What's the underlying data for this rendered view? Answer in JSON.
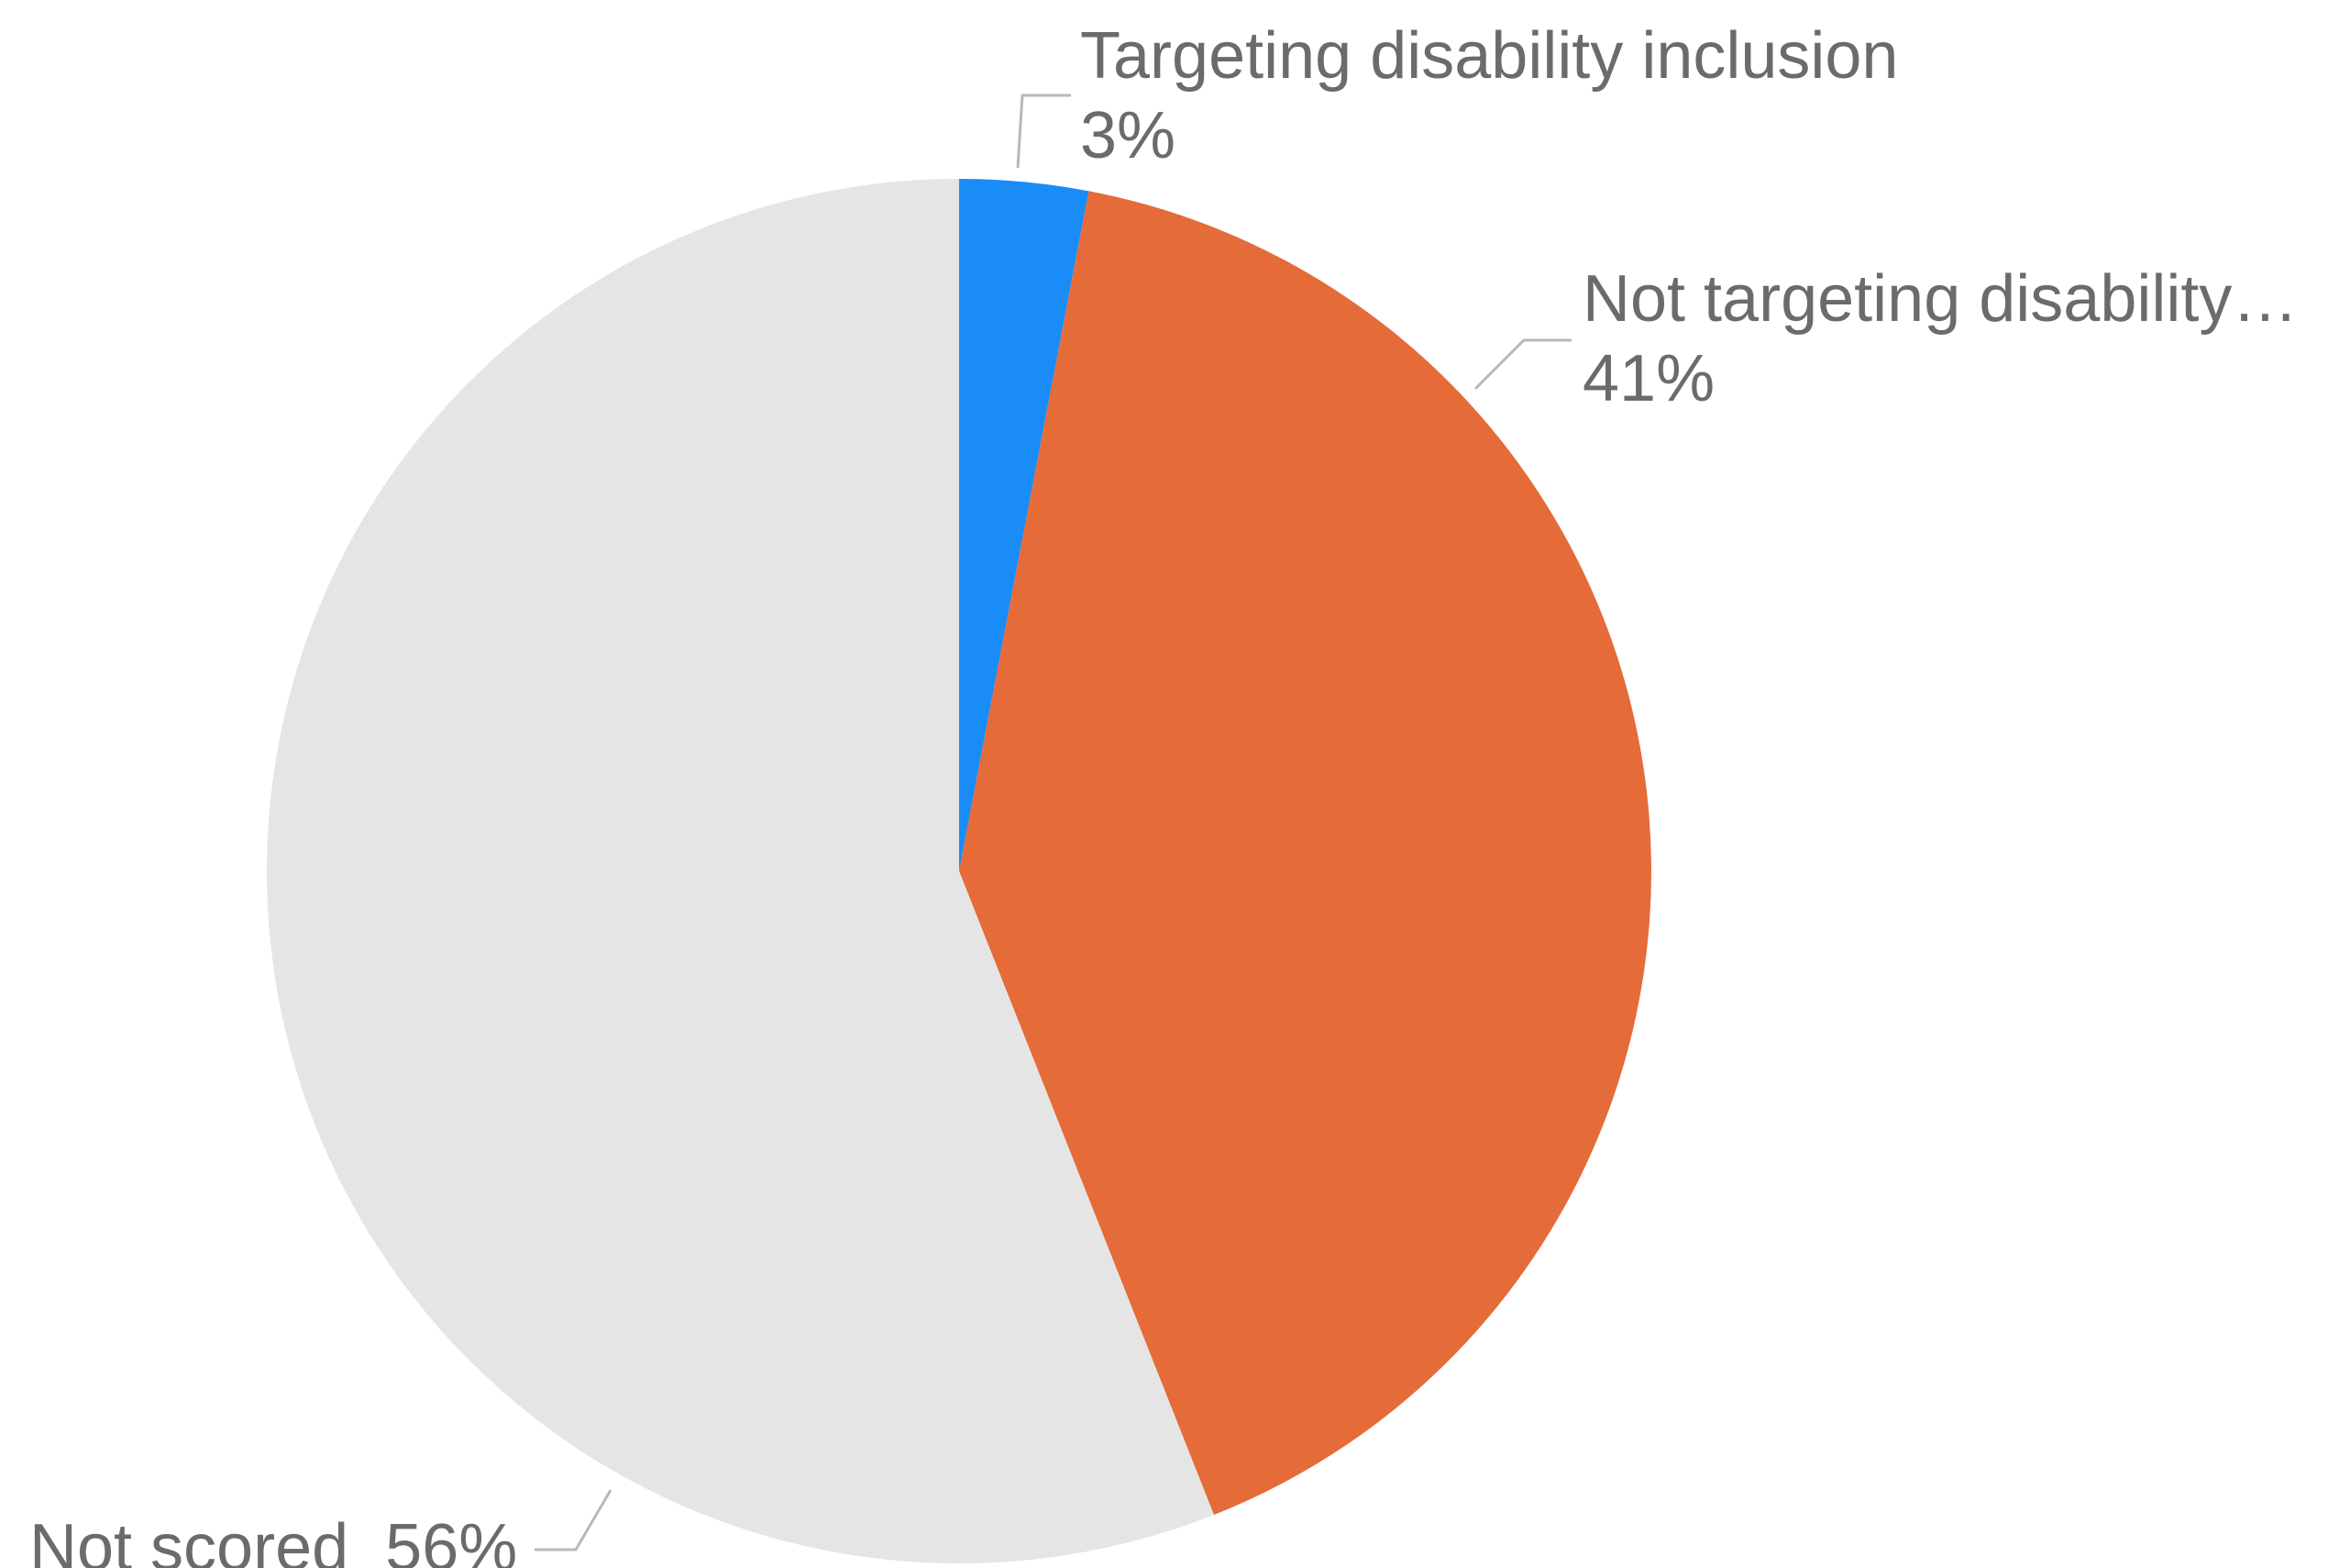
{
  "chart_data": {
    "type": "pie",
    "start_angle_deg": 0,
    "direction": "clockwise",
    "slices": [
      {
        "label": "Targeting disability inclusion",
        "display_label": "Targeting disability inclusion",
        "value": 3,
        "value_label": "3%",
        "color": "#1a8cf8"
      },
      {
        "label": "Not targeting disability…",
        "display_label": "Not targeting disability…",
        "value": 41,
        "value_label": "41%",
        "color": "#e56b39"
      },
      {
        "label": "Not scored",
        "display_label": "Not scored",
        "value": 56,
        "value_label": "56%",
        "color": "#e5e5e5"
      }
    ],
    "label_color": "#6b6b6b",
    "leader_color": "#b8b8b8"
  }
}
